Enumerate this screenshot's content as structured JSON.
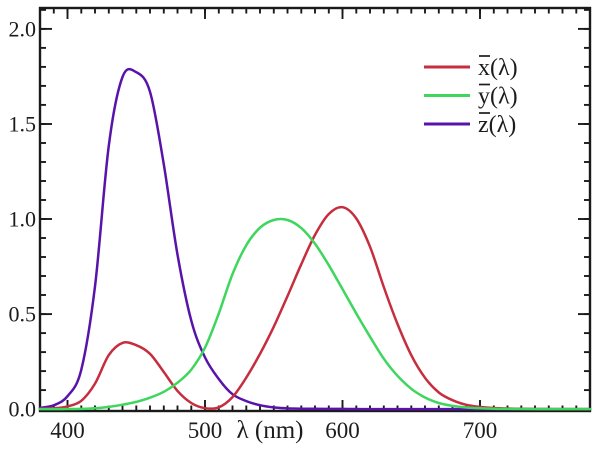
{
  "figure": {
    "background": "#ffffff",
    "frame_color": "#1a1a1a"
  },
  "chart_data": {
    "type": "line",
    "title": "",
    "xlabel": "λ (nm)",
    "ylabel": "",
    "xlim": [
      380,
      780
    ],
    "ylim": [
      0,
      2.11
    ],
    "grid": false,
    "legend_position": "upper right",
    "x_major_ticks": [
      400,
      500,
      600,
      700
    ],
    "x_tick_labels": [
      "400",
      "500",
      "600",
      "700"
    ],
    "x_minor_tick_step": 10,
    "y_major_ticks": [
      0,
      0.5,
      1.0,
      1.5,
      2.0
    ],
    "y_tick_labels": [
      "0.0",
      "0.5",
      "1.0",
      "1.5",
      "2.0"
    ],
    "y_minor_tick_step": 0.1,
    "x": [
      380,
      390,
      400,
      410,
      420,
      430,
      440,
      450,
      460,
      470,
      480,
      490,
      500,
      510,
      520,
      530,
      540,
      550,
      560,
      570,
      580,
      590,
      600,
      610,
      620,
      630,
      640,
      650,
      660,
      670,
      680,
      690,
      700,
      710,
      720,
      730,
      740,
      750,
      760,
      770,
      780
    ],
    "series": [
      {
        "name": "x̄(λ)",
        "color": "#c62d3e",
        "values": [
          0.0014,
          0.0042,
          0.0143,
          0.0435,
          0.1344,
          0.2839,
          0.3483,
          0.3362,
          0.2908,
          0.1954,
          0.0956,
          0.032,
          0.0049,
          0.0093,
          0.0633,
          0.1655,
          0.2904,
          0.4334,
          0.5945,
          0.7621,
          0.9163,
          1.0263,
          1.0622,
          1.0026,
          0.8544,
          0.6424,
          0.4479,
          0.2835,
          0.1649,
          0.0874,
          0.0468,
          0.0227,
          0.0114,
          0.0058,
          0.0029,
          0.0014,
          0.0007,
          0.0003,
          0.0002,
          0.0001,
          0.0
        ]
      },
      {
        "name": "ȳ(λ)",
        "color": "#3ed65c",
        "values": [
          0.0,
          0.0001,
          0.0004,
          0.0012,
          0.004,
          0.0116,
          0.023,
          0.038,
          0.06,
          0.091,
          0.139,
          0.208,
          0.323,
          0.503,
          0.71,
          0.862,
          0.954,
          0.995,
          0.995,
          0.952,
          0.87,
          0.757,
          0.631,
          0.503,
          0.381,
          0.265,
          0.175,
          0.107,
          0.061,
          0.032,
          0.017,
          0.0082,
          0.0041,
          0.0021,
          0.001,
          0.0005,
          0.0002,
          0.0001,
          0.0001,
          0.0,
          0.0
        ]
      },
      {
        "name": "z̄(λ)",
        "color": "#5814aa",
        "values": [
          0.0065,
          0.0201,
          0.0679,
          0.2074,
          0.6456,
          1.3856,
          1.7471,
          1.7721,
          1.6692,
          1.2876,
          0.813,
          0.4652,
          0.272,
          0.1582,
          0.0782,
          0.0422,
          0.0203,
          0.0087,
          0.0039,
          0.0021,
          0.0017,
          0.0011,
          0.0008,
          0.0003,
          0.0002,
          0.0,
          0.0,
          0.0,
          0.0,
          0.0,
          0.0,
          0.0,
          0.0,
          0.0,
          0.0,
          0.0,
          0.0,
          0.0,
          0.0,
          0.0,
          0.0
        ]
      }
    ]
  },
  "legend": {
    "items": [
      {
        "letter": "x",
        "suffix": "(λ)",
        "color": "#c62d3e"
      },
      {
        "letter": "y",
        "suffix": "(λ)",
        "color": "#3ed65c"
      },
      {
        "letter": "z",
        "suffix": "(λ)",
        "color": "#5814aa"
      }
    ]
  }
}
